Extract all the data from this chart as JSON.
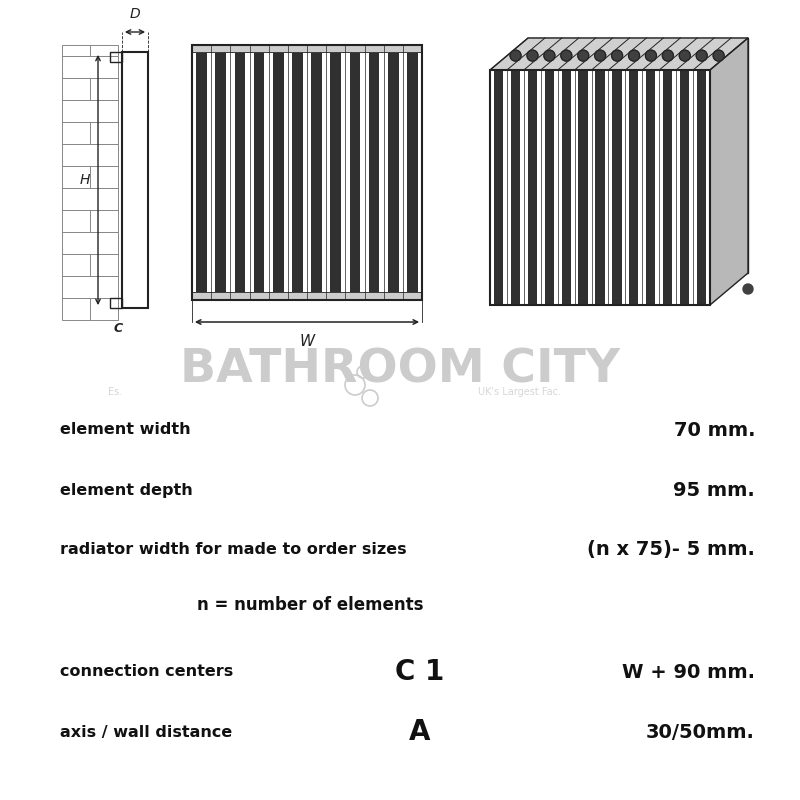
{
  "bg_color": "#ffffff",
  "line_color": "#222222",
  "gray_color": "#888888",
  "watermark_color": "#cccccc",
  "n_front_fins": 12,
  "n_iso_fins": 13,
  "spec_rows": [
    {
      "label": "element width",
      "symbol": "",
      "value": "70 mm."
    },
    {
      "label": "element depth",
      "symbol": "",
      "value": "95 mm."
    },
    {
      "label": "radiator width for made to order sizes",
      "symbol": "",
      "value": "(n x 75)- 5 mm."
    },
    {
      "label": "",
      "symbol": "n = number of elements",
      "value": ""
    },
    {
      "label": "connection centers",
      "symbol": "C 1",
      "value": "W + 90 mm."
    },
    {
      "label": "axis / wall distance",
      "symbol": "A",
      "value": "30/50mm."
    }
  ]
}
